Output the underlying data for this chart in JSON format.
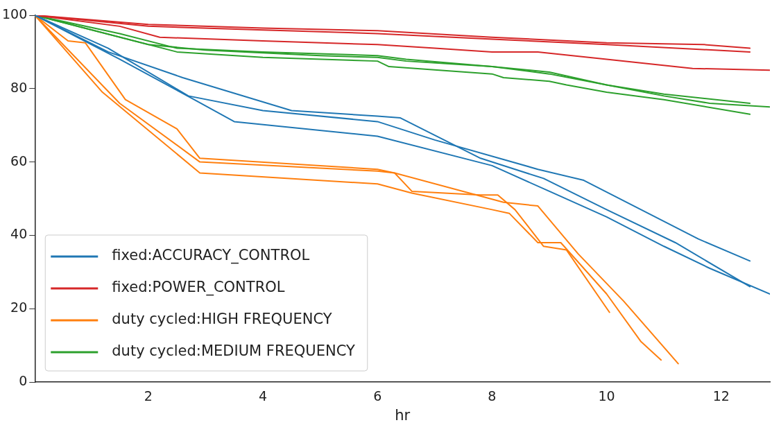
{
  "chart_data": {
    "type": "line",
    "xlabel": "hr",
    "xlim": [
      0.02,
      12.85
    ],
    "xticks": [
      2,
      4,
      6,
      8,
      10,
      12
    ],
    "ylim": [
      0,
      100
    ],
    "yticks": [
      0,
      20,
      40,
      60,
      80,
      100
    ],
    "grid": false,
    "legend": "bottom left",
    "marker": "none",
    "line_style": "solid",
    "series": [
      {
        "name": "fixed:ACCURACY_CONTROL",
        "color": "#1f77b4",
        "x": [
          0.02,
          1.3,
          2.6,
          4.5,
          6,
          6.4,
          7.8,
          8.9,
          10,
          11.2,
          12.5
        ],
        "values": [
          100,
          90,
          83,
          74,
          72.5,
          72,
          61,
          55.5,
          47,
          38,
          26
        ]
      },
      {
        "color": "#1f77b4",
        "x": [
          0.02,
          1.3,
          2.7,
          4,
          6,
          7,
          8.8,
          9.6,
          11.6,
          12.5
        ],
        "values": [
          100,
          91,
          78,
          74,
          71,
          66,
          58,
          55,
          39,
          33
        ]
      },
      {
        "color": "#1f77b4",
        "x": [
          0.02,
          1.5,
          2.8,
          3.5,
          6,
          8,
          9,
          10,
          11,
          11.8,
          12.85
        ],
        "values": [
          100,
          88,
          77,
          71,
          67,
          59,
          52,
          45,
          37,
          31,
          24
        ]
      },
      {
        "name": "fixed:POWER_CONTROL",
        "color": "#d62728",
        "x": [
          0.02,
          2,
          4,
          6,
          8,
          10,
          11.7,
          12.5
        ],
        "values": [
          100,
          97.5,
          96.5,
          95.8,
          94,
          92.5,
          92,
          91
        ]
      },
      {
        "color": "#d62728",
        "x": [
          0.02,
          2,
          4,
          6,
          8,
          10,
          12.5
        ],
        "values": [
          100,
          97,
          96,
          95,
          93.5,
          92,
          90
        ]
      },
      {
        "color": "#d62728",
        "x": [
          0.02,
          1.5,
          2.2,
          4,
          6,
          7,
          8,
          8.8,
          10,
          11.5,
          12.85
        ],
        "values": [
          100,
          97,
          94,
          93,
          92,
          91,
          90,
          90,
          88,
          85.5,
          85
        ]
      },
      {
        "name": "duty cycled:HIGH FREQUENCY",
        "color": "#ff7f0e",
        "x": [
          0.02,
          0.6,
          0.9,
          1.6,
          2.5,
          2.9,
          6,
          6.3,
          6.6,
          7.8,
          8.1,
          8.4,
          8.9,
          9.3,
          10.05
        ],
        "values": [
          100,
          93,
          92.5,
          77,
          69,
          61,
          58,
          57,
          52,
          51,
          51,
          47,
          37,
          36,
          19
        ]
      },
      {
        "color": "#ff7f0e",
        "x": [
          0.02,
          1.2,
          2.9,
          6,
          6.6,
          8,
          8.3,
          8.8,
          9.2,
          10,
          10.6,
          10.95
        ],
        "values": [
          100,
          79,
          57,
          54,
          51.5,
          47,
          46,
          38,
          38,
          24,
          11,
          6
        ]
      },
      {
        "color": "#ff7f0e",
        "x": [
          0.02,
          1.5,
          2.9,
          6,
          6.3,
          8.2,
          8.8,
          9.5,
          10.3,
          11.25
        ],
        "values": [
          100,
          76,
          60,
          57.5,
          57,
          49,
          48,
          35,
          22,
          5
        ]
      },
      {
        "name": "duty cycled:MEDIUM FREQUENCY",
        "color": "#2ca02c",
        "x": [
          0.02,
          1.5,
          2.5,
          4,
          6,
          6.5,
          8,
          9,
          10,
          11,
          12.5
        ],
        "values": [
          100,
          95,
          91,
          90,
          89,
          88,
          86,
          84.5,
          81,
          78.5,
          76
        ]
      },
      {
        "color": "#2ca02c",
        "x": [
          0.02,
          2.5,
          4,
          6,
          6.2,
          8,
          8.2,
          9,
          9.3,
          10,
          11,
          12.5
        ],
        "values": [
          100,
          90,
          88.5,
          87.5,
          86,
          84,
          83,
          82,
          81,
          79,
          77,
          73
        ]
      },
      {
        "color": "#2ca02c",
        "x": [
          0.02,
          2,
          3,
          5,
          6,
          6.5,
          8,
          9,
          10,
          11,
          11.8,
          12.85
        ],
        "values": [
          100,
          92,
          90.5,
          89,
          88.5,
          87.5,
          86,
          84,
          81,
          78,
          76,
          75
        ]
      }
    ]
  }
}
